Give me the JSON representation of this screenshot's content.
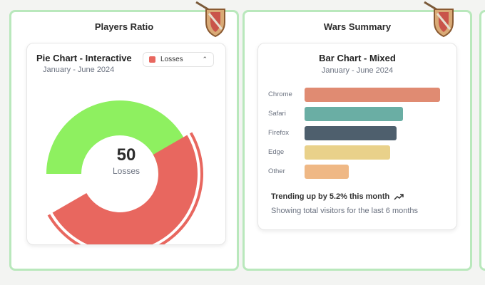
{
  "left_panel": {
    "title": "Players Ratio",
    "card": {
      "title": "Pie Chart - Interactive",
      "subtitle": "January - June 2024",
      "select": {
        "value": "Losses",
        "color": "#e8675f"
      },
      "center": {
        "value": "50",
        "label": "Losses"
      }
    }
  },
  "right_panel": {
    "title": "Wars Summary",
    "card": {
      "title": "Bar Chart - Mixed",
      "subtitle": "January - June 2024",
      "trend": "Trending up by 5.2% this month",
      "footer": "Showing total visitors for the last 6 months"
    }
  },
  "icons": {
    "badge": "shield-crest-icon",
    "trend": "trending-up-icon",
    "chevron": "chevron-up-down-icon"
  },
  "colors": {
    "panel_border": "#b9e8bc",
    "wins": "#8ef060",
    "losses": "#e8675f"
  },
  "chart_data": [
    {
      "type": "pie",
      "slices": [
        {
          "category": "green",
          "value": 50,
          "color": "#8ef060"
        },
        {
          "category": "Losses",
          "value": 50,
          "color": "#e8675f"
        }
      ],
      "active": "Losses"
    },
    {
      "type": "bar",
      "orientation": "horizontal",
      "categories": [
        "Chrome",
        "Safari",
        "Firefox",
        "Edge",
        "Other"
      ],
      "values": [
        275,
        200,
        187,
        173,
        90
      ],
      "colors": [
        "#e08b72",
        "#6aaea4",
        "#4e5f6d",
        "#e9d18a",
        "#efb885"
      ],
      "xlim": [
        0,
        275
      ],
      "grid": false
    }
  ]
}
